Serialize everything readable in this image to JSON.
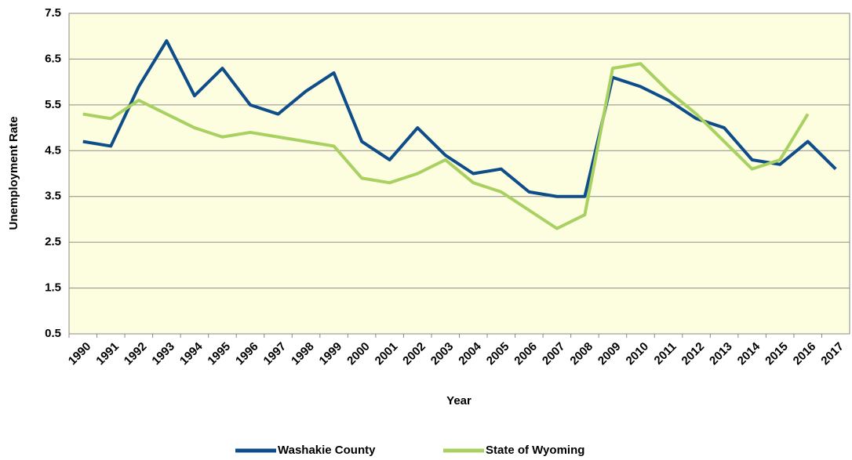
{
  "chart_data": {
    "type": "line",
    "x_label": "Year",
    "y_label": "Unemployment Rate",
    "categories": [
      "1990",
      "1991",
      "1992",
      "1993",
      "1994",
      "1995",
      "1996",
      "1997",
      "1998",
      "1999",
      "2000",
      "2001",
      "2002",
      "2003",
      "2004",
      "2005",
      "2006",
      "2007",
      "2008",
      "2009",
      "2010",
      "2011",
      "2012",
      "2013",
      "2014",
      "2015",
      "2016",
      "2017"
    ],
    "series": [
      {
        "name": "Washakie County",
        "color": "#0e4c8a",
        "values": [
          4.7,
          4.6,
          5.9,
          6.9,
          5.7,
          6.3,
          5.5,
          5.3,
          5.8,
          6.2,
          4.7,
          4.3,
          5.0,
          4.4,
          4.0,
          4.1,
          3.6,
          3.5,
          3.5,
          6.1,
          5.9,
          5.6,
          5.2,
          5.0,
          4.3,
          4.2,
          4.7,
          4.1
        ]
      },
      {
        "name": "State of Wyoming",
        "color": "#a9d161",
        "values": [
          5.3,
          5.2,
          5.6,
          5.3,
          5.0,
          4.8,
          4.9,
          4.8,
          4.7,
          4.6,
          3.9,
          3.8,
          4.0,
          4.3,
          3.8,
          3.6,
          3.2,
          2.8,
          3.1,
          6.3,
          6.4,
          5.8,
          5.3,
          4.7,
          4.1,
          4.3,
          5.3,
          null
        ]
      }
    ],
    "ylim": [
      0.5,
      7.5
    ],
    "yticks": [
      0.5,
      1.5,
      2.5,
      3.5,
      4.5,
      5.5,
      6.5,
      7.5
    ],
    "grid": true,
    "legend": "bottom"
  }
}
